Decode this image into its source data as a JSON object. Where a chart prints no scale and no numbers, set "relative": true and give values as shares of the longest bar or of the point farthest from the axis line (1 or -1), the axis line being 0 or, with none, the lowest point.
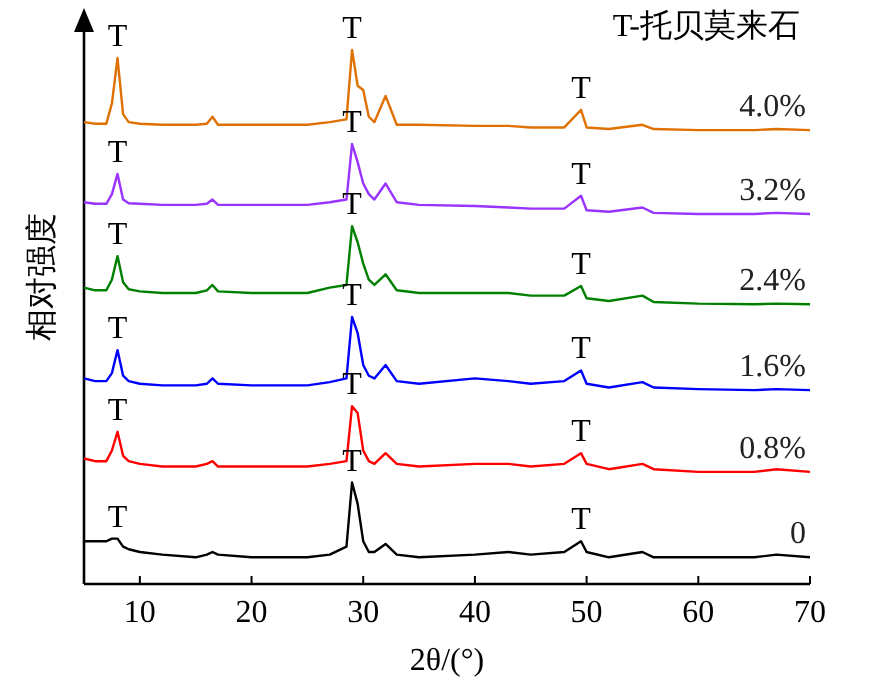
{
  "chart_data": {
    "type": "line",
    "relative": true,
    "xlabel": "2θ/(°)",
    "ylabel": "相对强度",
    "xlim": [
      5,
      70
    ],
    "xticks": [
      10,
      20,
      30,
      40,
      50,
      60,
      70
    ],
    "x": [
      5,
      6,
      7,
      7.5,
      8,
      8.5,
      9,
      10,
      12,
      15,
      16,
      16.5,
      17,
      20,
      25,
      27,
      28.5,
      29,
      29.5,
      30,
      30.5,
      31,
      32,
      33,
      35,
      40,
      43,
      45,
      48,
      49.5,
      50,
      52,
      55,
      56,
      60,
      65,
      67,
      70
    ],
    "series": [
      {
        "name": "0",
        "color": "#000000",
        "values": [
          0.08,
          0.08,
          0.08,
          0.085,
          0.085,
          0.07,
          0.065,
          0.06,
          0.055,
          0.05,
          0.055,
          0.06,
          0.055,
          0.05,
          0.05,
          0.055,
          0.07,
          0.19,
          0.15,
          0.08,
          0.06,
          0.06,
          0.075,
          0.055,
          0.05,
          0.055,
          0.06,
          0.055,
          0.06,
          0.08,
          0.06,
          0.05,
          0.06,
          0.05,
          0.05,
          0.05,
          0.055,
          0.05
        ]
      },
      {
        "name": "0.8%",
        "color": "#ff0000",
        "values": [
          0.235,
          0.23,
          0.23,
          0.25,
          0.285,
          0.24,
          0.23,
          0.225,
          0.22,
          0.22,
          0.225,
          0.23,
          0.22,
          0.22,
          0.22,
          0.225,
          0.23,
          0.333,
          0.32,
          0.25,
          0.23,
          0.225,
          0.245,
          0.225,
          0.22,
          0.225,
          0.225,
          0.22,
          0.225,
          0.245,
          0.225,
          0.215,
          0.225,
          0.215,
          0.21,
          0.21,
          0.215,
          0.21
        ]
      },
      {
        "name": "1.6%",
        "color": "#0000ff",
        "values": [
          0.385,
          0.38,
          0.38,
          0.395,
          0.438,
          0.39,
          0.38,
          0.375,
          0.372,
          0.372,
          0.375,
          0.385,
          0.375,
          0.372,
          0.372,
          0.378,
          0.385,
          0.5,
          0.47,
          0.41,
          0.39,
          0.385,
          0.41,
          0.38,
          0.375,
          0.385,
          0.38,
          0.375,
          0.38,
          0.4,
          0.375,
          0.368,
          0.378,
          0.368,
          0.365,
          0.363,
          0.365,
          0.363
        ]
      },
      {
        "name": "2.4%",
        "color": "#008000",
        "values": [
          0.555,
          0.55,
          0.55,
          0.57,
          0.614,
          0.565,
          0.552,
          0.548,
          0.545,
          0.545,
          0.55,
          0.56,
          0.548,
          0.545,
          0.545,
          0.555,
          0.56,
          0.67,
          0.64,
          0.6,
          0.57,
          0.56,
          0.58,
          0.55,
          0.545,
          0.545,
          0.545,
          0.54,
          0.54,
          0.558,
          0.535,
          0.53,
          0.54,
          0.528,
          0.525,
          0.524,
          0.525,
          0.524
        ]
      },
      {
        "name": "3.2%",
        "color": "#9933ff",
        "values": [
          0.715,
          0.712,
          0.712,
          0.73,
          0.768,
          0.72,
          0.713,
          0.712,
          0.71,
          0.71,
          0.712,
          0.72,
          0.71,
          0.71,
          0.71,
          0.715,
          0.72,
          0.824,
          0.79,
          0.75,
          0.73,
          0.72,
          0.75,
          0.715,
          0.71,
          0.708,
          0.705,
          0.703,
          0.703,
          0.727,
          0.7,
          0.697,
          0.705,
          0.695,
          0.693,
          0.693,
          0.695,
          0.693
        ]
      },
      {
        "name": "4.0%",
        "color": "#e07000",
        "values": [
          0.865,
          0.862,
          0.862,
          0.9,
          0.985,
          0.88,
          0.865,
          0.862,
          0.86,
          0.86,
          0.862,
          0.875,
          0.86,
          0.86,
          0.86,
          0.865,
          0.87,
          1,
          0.933,
          0.925,
          0.875,
          0.865,
          0.914,
          0.86,
          0.86,
          0.858,
          0.858,
          0.855,
          0.855,
          0.888,
          0.855,
          0.852,
          0.86,
          0.852,
          0.85,
          0.85,
          0.852,
          0.85
        ]
      }
    ],
    "annotations": [
      "T-托贝莫来石",
      {
        "text": "T",
        "x": 8,
        "y": 0.085
      },
      {
        "text": "T",
        "x": 29,
        "y": 0.19
      },
      {
        "text": "T",
        "x": 49.5,
        "y": 0.08
      },
      {
        "text": "T",
        "x": 8,
        "y": 0.285
      },
      {
        "text": "T",
        "x": 29,
        "y": 0.333
      },
      {
        "text": "T",
        "x": 49.5,
        "y": 0.245
      },
      {
        "text": "T",
        "x": 8,
        "y": 0.438
      },
      {
        "text": "T",
        "x": 29,
        "y": 0.5
      },
      {
        "text": "T",
        "x": 49.5,
        "y": 0.4
      },
      {
        "text": "T",
        "x": 8,
        "y": 0.614
      },
      {
        "text": "T",
        "x": 29,
        "y": 0.67
      },
      {
        "text": "T",
        "x": 49.5,
        "y": 0.558
      },
      {
        "text": "T",
        "x": 8,
        "y": 0.768
      },
      {
        "text": "T",
        "x": 29,
        "y": 0.824
      },
      {
        "text": "T",
        "x": 49.5,
        "y": 0.727
      },
      {
        "text": "T",
        "x": 8,
        "y": 0.985
      },
      {
        "text": "T",
        "x": 29,
        "y": 1
      },
      {
        "text": "T",
        "x": 49.5,
        "y": 0.888
      }
    ]
  }
}
